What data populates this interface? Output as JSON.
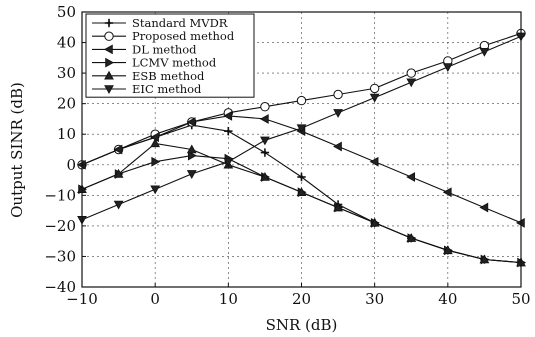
{
  "chart_data": {
    "type": "line",
    "title": "",
    "xlabel": "SNR (dB)",
    "ylabel": "Output SINR (dB)",
    "xlim": [
      -10,
      50
    ],
    "ylim": [
      -40,
      50
    ],
    "xticks": [
      -10,
      0,
      10,
      20,
      30,
      40,
      50
    ],
    "yticks": [
      -40,
      -30,
      -20,
      -10,
      0,
      10,
      20,
      30,
      40,
      50
    ],
    "grid": true,
    "legend_position": "top-left",
    "x": [
      -10,
      -5,
      0,
      5,
      10,
      15,
      20,
      25,
      30,
      35,
      40,
      45,
      50
    ],
    "series": [
      {
        "name": "Standard MVDR",
        "marker": "plus",
        "values": [
          0,
          5,
          9,
          13,
          11,
          4,
          -4,
          -13,
          -19,
          -24,
          -28,
          -31,
          -32
        ]
      },
      {
        "name": "Proposed method",
        "marker": "circle",
        "values": [
          0,
          5,
          10,
          14,
          17,
          19,
          21,
          23,
          25,
          30,
          34,
          39,
          43
        ]
      },
      {
        "name": "DL method",
        "marker": "triangle-left",
        "values": [
          0,
          5,
          9,
          14,
          16,
          15,
          11,
          6,
          1,
          -4,
          -9,
          -14,
          -19
        ]
      },
      {
        "name": "LCMV method",
        "marker": "triangle-right",
        "values": [
          -8,
          -3,
          1,
          3,
          2,
          -4,
          -9,
          -14,
          -19,
          -24,
          -28,
          -31,
          -32
        ]
      },
      {
        "name": "ESB method",
        "marker": "triangle-up",
        "values": [
          -8,
          -3,
          7,
          5,
          0,
          -4,
          -9,
          -14,
          -19,
          -24,
          -28,
          -31,
          -32
        ]
      },
      {
        "name": "EIC method",
        "marker": "triangle-down",
        "values": [
          -18,
          -13,
          -8,
          -3,
          1,
          8,
          12,
          17,
          22,
          27,
          32,
          37,
          42
        ]
      }
    ]
  }
}
